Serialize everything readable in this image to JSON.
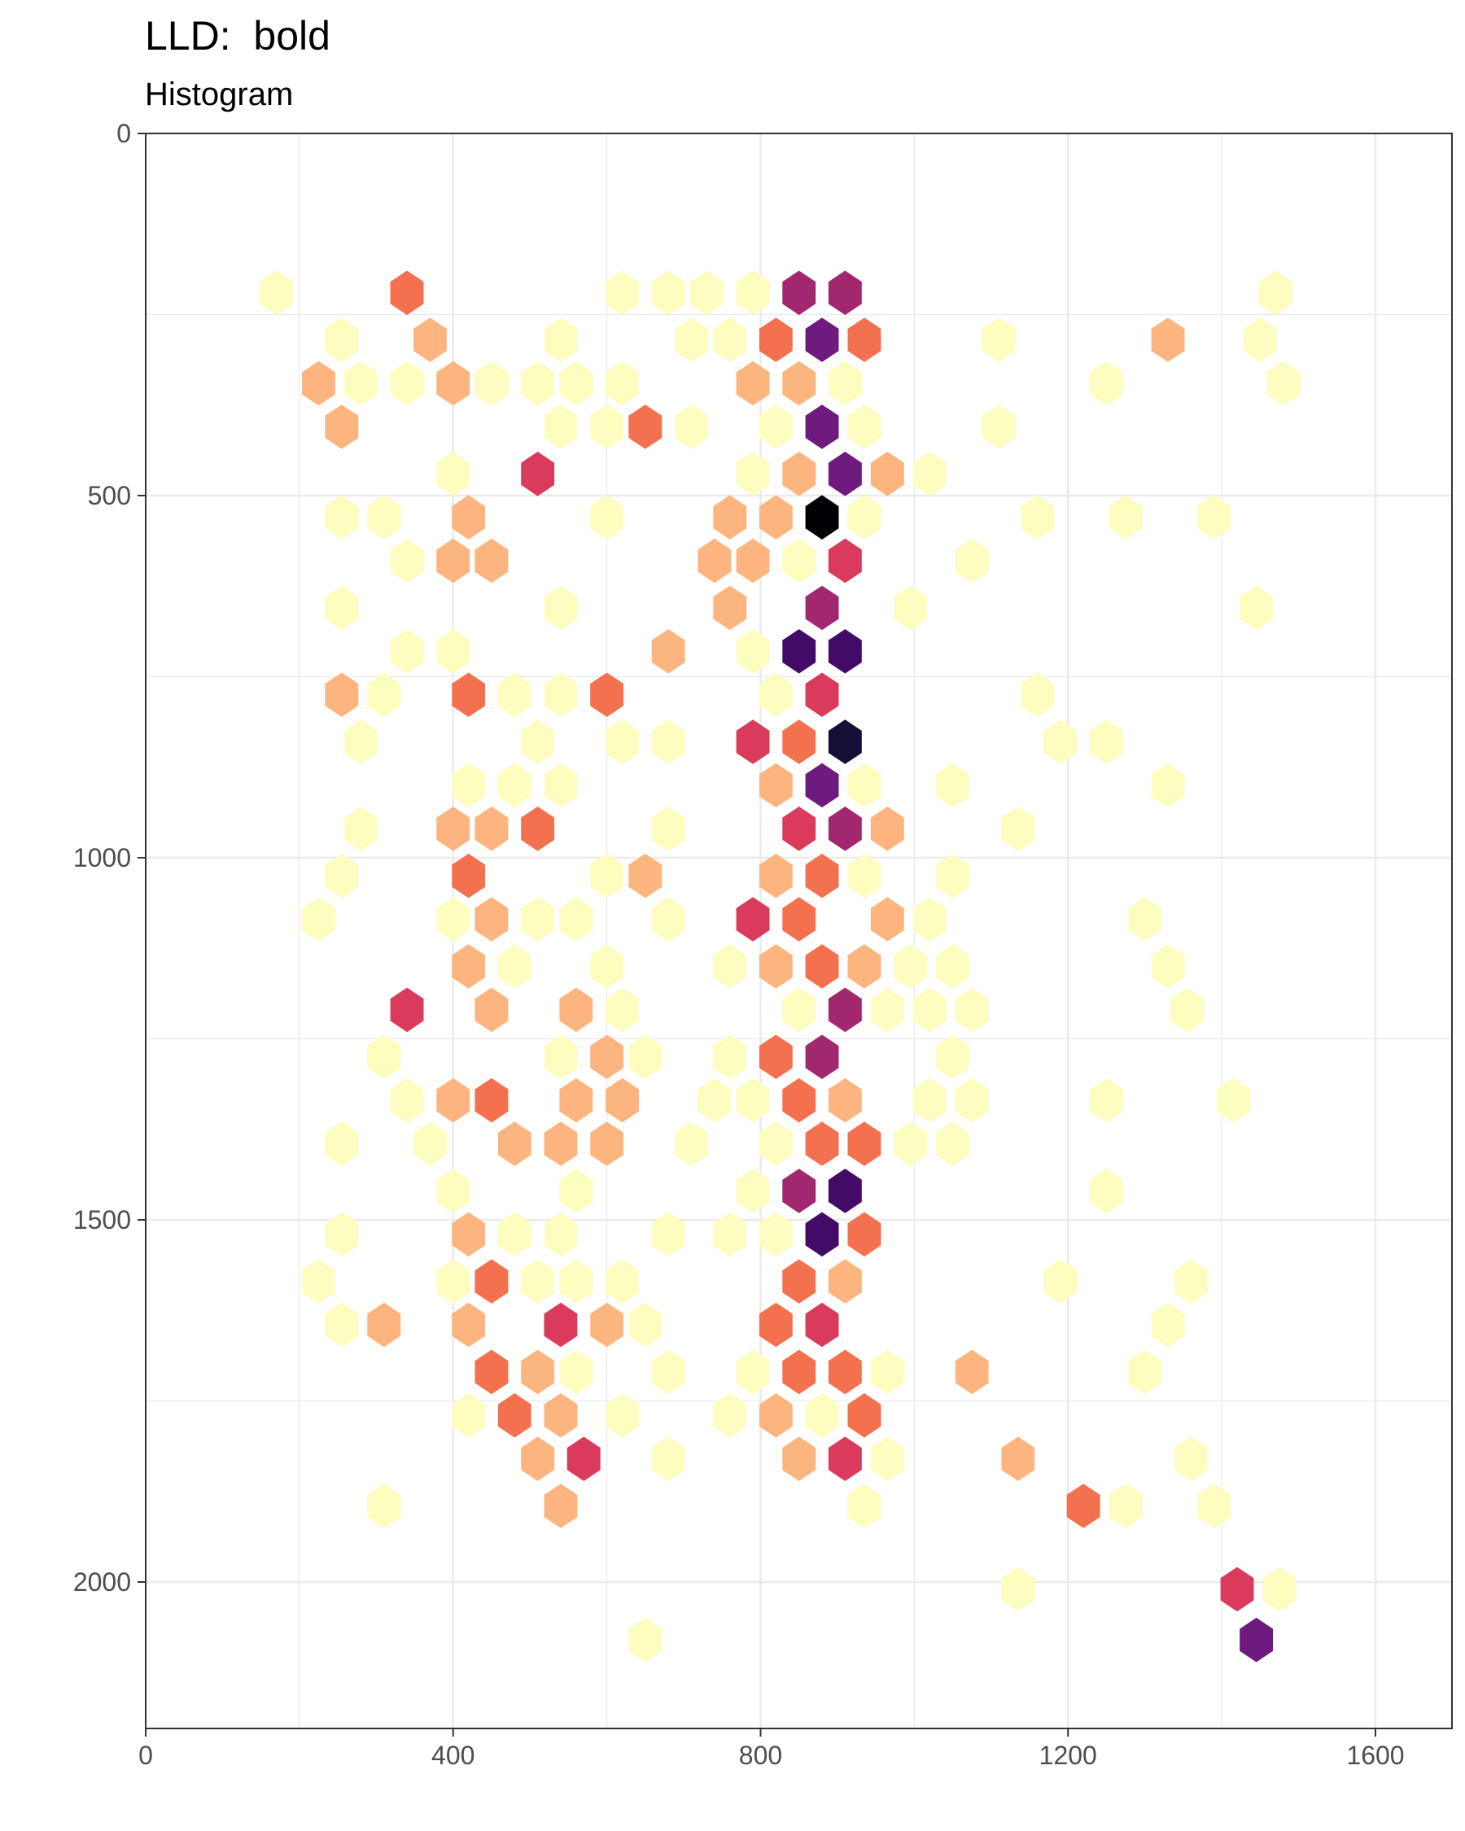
{
  "chart_data": {
    "type": "hexbin",
    "title": "LLD:  bold",
    "subtitle": "Histogram",
    "xlabel": "",
    "ylabel": "",
    "xlim": [
      0,
      1700
    ],
    "ylim": [
      2200,
      0
    ],
    "y_reversed": true,
    "x_ticks": [
      0,
      400,
      800,
      1200,
      1600
    ],
    "y_ticks": [
      0,
      500,
      1000,
      1500,
      2000
    ],
    "grid": true,
    "legend": "none",
    "colormap": "magma",
    "colors": {
      "level_1": "#FCFDBF",
      "level_2": "#FDB57F",
      "level_3": "#F4714F",
      "level_4": "#DA3A5C",
      "level_5": "#A1286E",
      "level_6": "#6E1A7E",
      "level_7": "#440A68",
      "level_8": "#150E37",
      "level_9": "#000004"
    },
    "hex_radius": 25,
    "bins": [
      {
        "x": 170,
        "y": 220,
        "level": 1
      },
      {
        "x": 340,
        "y": 220,
        "level": 3
      },
      {
        "x": 620,
        "y": 220,
        "level": 1
      },
      {
        "x": 680,
        "y": 220,
        "level": 1
      },
      {
        "x": 730,
        "y": 220,
        "level": 1
      },
      {
        "x": 790,
        "y": 220,
        "level": 1
      },
      {
        "x": 850,
        "y": 220,
        "level": 5
      },
      {
        "x": 910,
        "y": 220,
        "level": 5
      },
      {
        "x": 1470,
        "y": 220,
        "level": 1
      },
      {
        "x": 255,
        "y": 285,
        "level": 1
      },
      {
        "x": 370,
        "y": 285,
        "level": 2
      },
      {
        "x": 540,
        "y": 285,
        "level": 1
      },
      {
        "x": 710,
        "y": 285,
        "level": 1
      },
      {
        "x": 760,
        "y": 285,
        "level": 1
      },
      {
        "x": 820,
        "y": 285,
        "level": 3
      },
      {
        "x": 880,
        "y": 285,
        "level": 6
      },
      {
        "x": 935,
        "y": 285,
        "level": 3
      },
      {
        "x": 1110,
        "y": 285,
        "level": 1
      },
      {
        "x": 1330,
        "y": 285,
        "level": 2
      },
      {
        "x": 1450,
        "y": 285,
        "level": 1
      },
      {
        "x": 225,
        "y": 345,
        "level": 2
      },
      {
        "x": 280,
        "y": 345,
        "level": 1
      },
      {
        "x": 340,
        "y": 345,
        "level": 1
      },
      {
        "x": 400,
        "y": 345,
        "level": 2
      },
      {
        "x": 450,
        "y": 345,
        "level": 1
      },
      {
        "x": 510,
        "y": 345,
        "level": 1
      },
      {
        "x": 560,
        "y": 345,
        "level": 1
      },
      {
        "x": 620,
        "y": 345,
        "level": 1
      },
      {
        "x": 790,
        "y": 345,
        "level": 2
      },
      {
        "x": 850,
        "y": 345,
        "level": 2
      },
      {
        "x": 910,
        "y": 345,
        "level": 1
      },
      {
        "x": 1250,
        "y": 345,
        "level": 1
      },
      {
        "x": 1480,
        "y": 345,
        "level": 1
      },
      {
        "x": 255,
        "y": 405,
        "level": 2
      },
      {
        "x": 540,
        "y": 405,
        "level": 1
      },
      {
        "x": 600,
        "y": 405,
        "level": 1
      },
      {
        "x": 650,
        "y": 405,
        "level": 3
      },
      {
        "x": 710,
        "y": 405,
        "level": 1
      },
      {
        "x": 820,
        "y": 405,
        "level": 1
      },
      {
        "x": 880,
        "y": 405,
        "level": 6
      },
      {
        "x": 935,
        "y": 405,
        "level": 1
      },
      {
        "x": 1110,
        "y": 405,
        "level": 1
      },
      {
        "x": 400,
        "y": 470,
        "level": 1
      },
      {
        "x": 510,
        "y": 470,
        "level": 4
      },
      {
        "x": 790,
        "y": 470,
        "level": 1
      },
      {
        "x": 850,
        "y": 470,
        "level": 2
      },
      {
        "x": 910,
        "y": 470,
        "level": 6
      },
      {
        "x": 965,
        "y": 470,
        "level": 2
      },
      {
        "x": 1020,
        "y": 470,
        "level": 1
      },
      {
        "x": 255,
        "y": 530,
        "level": 1
      },
      {
        "x": 310,
        "y": 530,
        "level": 1
      },
      {
        "x": 420,
        "y": 530,
        "level": 2
      },
      {
        "x": 600,
        "y": 530,
        "level": 1
      },
      {
        "x": 760,
        "y": 530,
        "level": 2
      },
      {
        "x": 820,
        "y": 530,
        "level": 2
      },
      {
        "x": 880,
        "y": 530,
        "level": 9
      },
      {
        "x": 935,
        "y": 530,
        "level": 1
      },
      {
        "x": 1160,
        "y": 530,
        "level": 1
      },
      {
        "x": 1275,
        "y": 530,
        "level": 1
      },
      {
        "x": 1390,
        "y": 530,
        "level": 1
      },
      {
        "x": 340,
        "y": 590,
        "level": 1
      },
      {
        "x": 400,
        "y": 590,
        "level": 2
      },
      {
        "x": 450,
        "y": 590,
        "level": 2
      },
      {
        "x": 740,
        "y": 590,
        "level": 2
      },
      {
        "x": 790,
        "y": 590,
        "level": 2
      },
      {
        "x": 850,
        "y": 590,
        "level": 1
      },
      {
        "x": 910,
        "y": 590,
        "level": 4
      },
      {
        "x": 1075,
        "y": 590,
        "level": 1
      },
      {
        "x": 255,
        "y": 655,
        "level": 1
      },
      {
        "x": 540,
        "y": 655,
        "level": 1
      },
      {
        "x": 760,
        "y": 655,
        "level": 2
      },
      {
        "x": 880,
        "y": 655,
        "level": 5
      },
      {
        "x": 995,
        "y": 655,
        "level": 1
      },
      {
        "x": 1445,
        "y": 655,
        "level": 1
      },
      {
        "x": 340,
        "y": 715,
        "level": 1
      },
      {
        "x": 400,
        "y": 715,
        "level": 1
      },
      {
        "x": 680,
        "y": 715,
        "level": 2
      },
      {
        "x": 790,
        "y": 715,
        "level": 1
      },
      {
        "x": 850,
        "y": 715,
        "level": 7
      },
      {
        "x": 910,
        "y": 715,
        "level": 7
      },
      {
        "x": 255,
        "y": 775,
        "level": 2
      },
      {
        "x": 310,
        "y": 775,
        "level": 1
      },
      {
        "x": 420,
        "y": 775,
        "level": 3
      },
      {
        "x": 480,
        "y": 775,
        "level": 1
      },
      {
        "x": 540,
        "y": 775,
        "level": 1
      },
      {
        "x": 600,
        "y": 775,
        "level": 3
      },
      {
        "x": 820,
        "y": 775,
        "level": 1
      },
      {
        "x": 880,
        "y": 775,
        "level": 4
      },
      {
        "x": 1160,
        "y": 775,
        "level": 1
      },
      {
        "x": 280,
        "y": 840,
        "level": 1
      },
      {
        "x": 510,
        "y": 840,
        "level": 1
      },
      {
        "x": 620,
        "y": 840,
        "level": 1
      },
      {
        "x": 680,
        "y": 840,
        "level": 1
      },
      {
        "x": 790,
        "y": 840,
        "level": 4
      },
      {
        "x": 850,
        "y": 840,
        "level": 3
      },
      {
        "x": 910,
        "y": 840,
        "level": 8
      },
      {
        "x": 1190,
        "y": 840,
        "level": 1
      },
      {
        "x": 1250,
        "y": 840,
        "level": 1
      },
      {
        "x": 420,
        "y": 900,
        "level": 1
      },
      {
        "x": 480,
        "y": 900,
        "level": 1
      },
      {
        "x": 540,
        "y": 900,
        "level": 1
      },
      {
        "x": 820,
        "y": 900,
        "level": 2
      },
      {
        "x": 880,
        "y": 900,
        "level": 6
      },
      {
        "x": 935,
        "y": 900,
        "level": 1
      },
      {
        "x": 1050,
        "y": 900,
        "level": 1
      },
      {
        "x": 1330,
        "y": 900,
        "level": 1
      },
      {
        "x": 280,
        "y": 960,
        "level": 1
      },
      {
        "x": 400,
        "y": 960,
        "level": 2
      },
      {
        "x": 450,
        "y": 960,
        "level": 2
      },
      {
        "x": 510,
        "y": 960,
        "level": 3
      },
      {
        "x": 680,
        "y": 960,
        "level": 1
      },
      {
        "x": 850,
        "y": 960,
        "level": 4
      },
      {
        "x": 910,
        "y": 960,
        "level": 5
      },
      {
        "x": 965,
        "y": 960,
        "level": 2
      },
      {
        "x": 1135,
        "y": 960,
        "level": 1
      },
      {
        "x": 255,
        "y": 1025,
        "level": 1
      },
      {
        "x": 420,
        "y": 1025,
        "level": 3
      },
      {
        "x": 600,
        "y": 1025,
        "level": 1
      },
      {
        "x": 650,
        "y": 1025,
        "level": 2
      },
      {
        "x": 820,
        "y": 1025,
        "level": 2
      },
      {
        "x": 880,
        "y": 1025,
        "level": 3
      },
      {
        "x": 935,
        "y": 1025,
        "level": 1
      },
      {
        "x": 1050,
        "y": 1025,
        "level": 1
      },
      {
        "x": 225,
        "y": 1085,
        "level": 1
      },
      {
        "x": 400,
        "y": 1085,
        "level": 1
      },
      {
        "x": 450,
        "y": 1085,
        "level": 2
      },
      {
        "x": 510,
        "y": 1085,
        "level": 1
      },
      {
        "x": 560,
        "y": 1085,
        "level": 1
      },
      {
        "x": 680,
        "y": 1085,
        "level": 1
      },
      {
        "x": 790,
        "y": 1085,
        "level": 4
      },
      {
        "x": 850,
        "y": 1085,
        "level": 3
      },
      {
        "x": 965,
        "y": 1085,
        "level": 2
      },
      {
        "x": 1020,
        "y": 1085,
        "level": 1
      },
      {
        "x": 1300,
        "y": 1085,
        "level": 1
      },
      {
        "x": 420,
        "y": 1150,
        "level": 2
      },
      {
        "x": 480,
        "y": 1150,
        "level": 1
      },
      {
        "x": 600,
        "y": 1150,
        "level": 1
      },
      {
        "x": 760,
        "y": 1150,
        "level": 1
      },
      {
        "x": 820,
        "y": 1150,
        "level": 2
      },
      {
        "x": 880,
        "y": 1150,
        "level": 3
      },
      {
        "x": 935,
        "y": 1150,
        "level": 2
      },
      {
        "x": 995,
        "y": 1150,
        "level": 1
      },
      {
        "x": 1050,
        "y": 1150,
        "level": 1
      },
      {
        "x": 1330,
        "y": 1150,
        "level": 1
      },
      {
        "x": 340,
        "y": 1210,
        "level": 4
      },
      {
        "x": 450,
        "y": 1210,
        "level": 2
      },
      {
        "x": 560,
        "y": 1210,
        "level": 2
      },
      {
        "x": 620,
        "y": 1210,
        "level": 1
      },
      {
        "x": 850,
        "y": 1210,
        "level": 1
      },
      {
        "x": 910,
        "y": 1210,
        "level": 5
      },
      {
        "x": 965,
        "y": 1210,
        "level": 1
      },
      {
        "x": 1020,
        "y": 1210,
        "level": 1
      },
      {
        "x": 1075,
        "y": 1210,
        "level": 1
      },
      {
        "x": 1355,
        "y": 1210,
        "level": 1
      },
      {
        "x": 310,
        "y": 1275,
        "level": 1
      },
      {
        "x": 540,
        "y": 1275,
        "level": 1
      },
      {
        "x": 600,
        "y": 1275,
        "level": 2
      },
      {
        "x": 650,
        "y": 1275,
        "level": 1
      },
      {
        "x": 760,
        "y": 1275,
        "level": 1
      },
      {
        "x": 820,
        "y": 1275,
        "level": 3
      },
      {
        "x": 880,
        "y": 1275,
        "level": 5
      },
      {
        "x": 1050,
        "y": 1275,
        "level": 1
      },
      {
        "x": 340,
        "y": 1335,
        "level": 1
      },
      {
        "x": 400,
        "y": 1335,
        "level": 2
      },
      {
        "x": 450,
        "y": 1335,
        "level": 3
      },
      {
        "x": 560,
        "y": 1335,
        "level": 2
      },
      {
        "x": 620,
        "y": 1335,
        "level": 2
      },
      {
        "x": 740,
        "y": 1335,
        "level": 1
      },
      {
        "x": 790,
        "y": 1335,
        "level": 1
      },
      {
        "x": 850,
        "y": 1335,
        "level": 3
      },
      {
        "x": 910,
        "y": 1335,
        "level": 2
      },
      {
        "x": 1020,
        "y": 1335,
        "level": 1
      },
      {
        "x": 1075,
        "y": 1335,
        "level": 1
      },
      {
        "x": 1250,
        "y": 1335,
        "level": 1
      },
      {
        "x": 1415,
        "y": 1335,
        "level": 1
      },
      {
        "x": 255,
        "y": 1395,
        "level": 1
      },
      {
        "x": 370,
        "y": 1395,
        "level": 1
      },
      {
        "x": 480,
        "y": 1395,
        "level": 2
      },
      {
        "x": 540,
        "y": 1395,
        "level": 2
      },
      {
        "x": 600,
        "y": 1395,
        "level": 2
      },
      {
        "x": 710,
        "y": 1395,
        "level": 1
      },
      {
        "x": 820,
        "y": 1395,
        "level": 1
      },
      {
        "x": 880,
        "y": 1395,
        "level": 3
      },
      {
        "x": 935,
        "y": 1395,
        "level": 3
      },
      {
        "x": 995,
        "y": 1395,
        "level": 1
      },
      {
        "x": 1050,
        "y": 1395,
        "level": 1
      },
      {
        "x": 400,
        "y": 1460,
        "level": 1
      },
      {
        "x": 560,
        "y": 1460,
        "level": 1
      },
      {
        "x": 790,
        "y": 1460,
        "level": 1
      },
      {
        "x": 850,
        "y": 1460,
        "level": 5
      },
      {
        "x": 910,
        "y": 1460,
        "level": 7
      },
      {
        "x": 1250,
        "y": 1460,
        "level": 1
      },
      {
        "x": 255,
        "y": 1520,
        "level": 1
      },
      {
        "x": 420,
        "y": 1520,
        "level": 2
      },
      {
        "x": 480,
        "y": 1520,
        "level": 1
      },
      {
        "x": 540,
        "y": 1520,
        "level": 1
      },
      {
        "x": 680,
        "y": 1520,
        "level": 1
      },
      {
        "x": 760,
        "y": 1520,
        "level": 1
      },
      {
        "x": 820,
        "y": 1520,
        "level": 1
      },
      {
        "x": 880,
        "y": 1520,
        "level": 7
      },
      {
        "x": 935,
        "y": 1520,
        "level": 3
      },
      {
        "x": 225,
        "y": 1585,
        "level": 1
      },
      {
        "x": 400,
        "y": 1585,
        "level": 1
      },
      {
        "x": 450,
        "y": 1585,
        "level": 3
      },
      {
        "x": 510,
        "y": 1585,
        "level": 1
      },
      {
        "x": 560,
        "y": 1585,
        "level": 1
      },
      {
        "x": 620,
        "y": 1585,
        "level": 1
      },
      {
        "x": 850,
        "y": 1585,
        "level": 3
      },
      {
        "x": 910,
        "y": 1585,
        "level": 2
      },
      {
        "x": 1190,
        "y": 1585,
        "level": 1
      },
      {
        "x": 1360,
        "y": 1585,
        "level": 1
      },
      {
        "x": 255,
        "y": 1645,
        "level": 1
      },
      {
        "x": 310,
        "y": 1645,
        "level": 2
      },
      {
        "x": 420,
        "y": 1645,
        "level": 2
      },
      {
        "x": 540,
        "y": 1645,
        "level": 4
      },
      {
        "x": 600,
        "y": 1645,
        "level": 2
      },
      {
        "x": 650,
        "y": 1645,
        "level": 1
      },
      {
        "x": 820,
        "y": 1645,
        "level": 3
      },
      {
        "x": 880,
        "y": 1645,
        "level": 4
      },
      {
        "x": 1330,
        "y": 1645,
        "level": 1
      },
      {
        "x": 450,
        "y": 1710,
        "level": 3
      },
      {
        "x": 510,
        "y": 1710,
        "level": 2
      },
      {
        "x": 560,
        "y": 1710,
        "level": 1
      },
      {
        "x": 680,
        "y": 1710,
        "level": 1
      },
      {
        "x": 790,
        "y": 1710,
        "level": 1
      },
      {
        "x": 850,
        "y": 1710,
        "level": 3
      },
      {
        "x": 910,
        "y": 1710,
        "level": 3
      },
      {
        "x": 965,
        "y": 1710,
        "level": 1
      },
      {
        "x": 1075,
        "y": 1710,
        "level": 2
      },
      {
        "x": 1300,
        "y": 1710,
        "level": 1
      },
      {
        "x": 420,
        "y": 1770,
        "level": 1
      },
      {
        "x": 480,
        "y": 1770,
        "level": 3
      },
      {
        "x": 540,
        "y": 1770,
        "level": 2
      },
      {
        "x": 620,
        "y": 1770,
        "level": 1
      },
      {
        "x": 760,
        "y": 1770,
        "level": 1
      },
      {
        "x": 820,
        "y": 1770,
        "level": 2
      },
      {
        "x": 880,
        "y": 1770,
        "level": 1
      },
      {
        "x": 935,
        "y": 1770,
        "level": 3
      },
      {
        "x": 510,
        "y": 1830,
        "level": 2
      },
      {
        "x": 570,
        "y": 1830,
        "level": 4
      },
      {
        "x": 680,
        "y": 1830,
        "level": 1
      },
      {
        "x": 850,
        "y": 1830,
        "level": 2
      },
      {
        "x": 910,
        "y": 1830,
        "level": 4
      },
      {
        "x": 965,
        "y": 1830,
        "level": 1
      },
      {
        "x": 1135,
        "y": 1830,
        "level": 2
      },
      {
        "x": 1360,
        "y": 1830,
        "level": 1
      },
      {
        "x": 310,
        "y": 1895,
        "level": 1
      },
      {
        "x": 540,
        "y": 1895,
        "level": 2
      },
      {
        "x": 935,
        "y": 1895,
        "level": 1
      },
      {
        "x": 1220,
        "y": 1895,
        "level": 3
      },
      {
        "x": 1275,
        "y": 1895,
        "level": 1
      },
      {
        "x": 1390,
        "y": 1895,
        "level": 1
      },
      {
        "x": 1135,
        "y": 2010,
        "level": 1
      },
      {
        "x": 1420,
        "y": 2010,
        "level": 4
      },
      {
        "x": 1475,
        "y": 2010,
        "level": 1
      },
      {
        "x": 650,
        "y": 2080,
        "level": 1
      },
      {
        "x": 1445,
        "y": 2080,
        "level": 6
      }
    ]
  }
}
